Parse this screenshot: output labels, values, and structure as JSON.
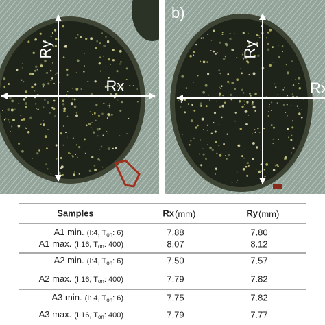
{
  "figure": {
    "labels": {
      "left_ry": "Ry",
      "left_rx": "Rx",
      "right_tag": "b)",
      "right_ry": "Ry",
      "right_rx": "Rx"
    }
  },
  "table": {
    "header": {
      "samples": "Samples",
      "rx": "Rx",
      "rx_unit": "(mm)",
      "ry": "Ry",
      "ry_unit": "(mm)"
    },
    "rows": [
      {
        "sample": "A1 min.",
        "params_a": "(I:4, T",
        "sub": "on",
        "params_b": ": 6)",
        "rx": "7.88",
        "ry": "7.80"
      },
      {
        "sample": "A1 max.",
        "params_a": "(I:16, T",
        "sub": "on",
        "params_b": ": 400)",
        "rx": "8.07",
        "ry": "8.12"
      },
      {
        "sample": "A2 min.",
        "params_a": "(I:4, T",
        "sub": "on",
        "params_b": ": 6)",
        "rx": "7.50",
        "ry": "7.57"
      },
      {
        "sample": "A2 max.",
        "params_a": "(I:16, T",
        "sub": "on",
        "params_b": ": 400)",
        "rx": "7.79",
        "ry": "7.82"
      },
      {
        "sample": "A3 min.",
        "params_a": "(I: 4, T",
        "sub": "on",
        "params_b": ": 6)",
        "rx": "7.75",
        "ry": "7.82"
      },
      {
        "sample": "A3 max.",
        "params_a": "(I:16, T",
        "sub": "on",
        "params_b": ": 400)",
        "rx": "7.79",
        "ry": "7.77"
      }
    ]
  }
}
